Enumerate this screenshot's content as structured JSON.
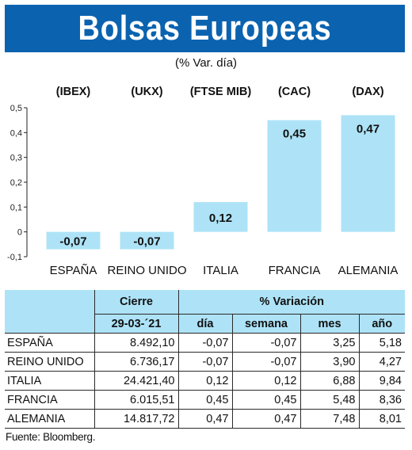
{
  "header": {
    "title": "Bolsas Europeas",
    "subtitle": "(% Var. día)"
  },
  "colors": {
    "banner": "#0b63b0",
    "bar": "#aee3f7",
    "table_header": "#aee3f7"
  },
  "chart_data": {
    "type": "bar",
    "index_labels": [
      "(IBEX)",
      "(UKX)",
      "(FTSE MIB)",
      "(CAC)",
      "(DAX)"
    ],
    "categories": [
      "ESPAÑA",
      "REINO UNIDO",
      "ITALIA",
      "FRANCIA",
      "ALEMANIA"
    ],
    "values": [
      -0.07,
      -0.07,
      0.12,
      0.45,
      0.47
    ],
    "value_labels": [
      "-0,07",
      "-0,07",
      "0,12",
      "0,45",
      "0,47"
    ],
    "yticks": [
      "0,5",
      "0,4",
      "0,3",
      "0,2",
      "0,1",
      "0",
      "-0,1"
    ],
    "ytick_values": [
      0.5,
      0.4,
      0.3,
      0.2,
      0.1,
      0,
      -0.1
    ],
    "ylim": [
      -0.1,
      0.5
    ],
    "grid": false
  },
  "table": {
    "header_cierre": "Cierre",
    "header_variacion": "% Variación",
    "date": "29-03-´21",
    "columns": [
      "día",
      "semana",
      "mes",
      "año"
    ],
    "rows": [
      {
        "country": "ESPAÑA",
        "cierre": "8.492,10",
        "dia": "-0,07",
        "semana": "-0,07",
        "mes": "3,25",
        "ano": "5,18"
      },
      {
        "country": "REINO UNIDO",
        "cierre": "6.736,17",
        "dia": "-0,07",
        "semana": "-0,07",
        "mes": "3,90",
        "ano": "4,27"
      },
      {
        "country": "ITALIA",
        "cierre": "24.421,40",
        "dia": "0,12",
        "semana": "0,12",
        "mes": "6,88",
        "ano": "9,84"
      },
      {
        "country": "FRANCIA",
        "cierre": "6.015,51",
        "dia": "0,45",
        "semana": "0,45",
        "mes": "5,48",
        "ano": "8,36"
      },
      {
        "country": "ALEMANIA",
        "cierre": "14.817,72",
        "dia": "0,47",
        "semana": "0,47",
        "mes": "7,48",
        "ano": "8,01"
      }
    ]
  },
  "source": "Fuente: Bloomberg."
}
